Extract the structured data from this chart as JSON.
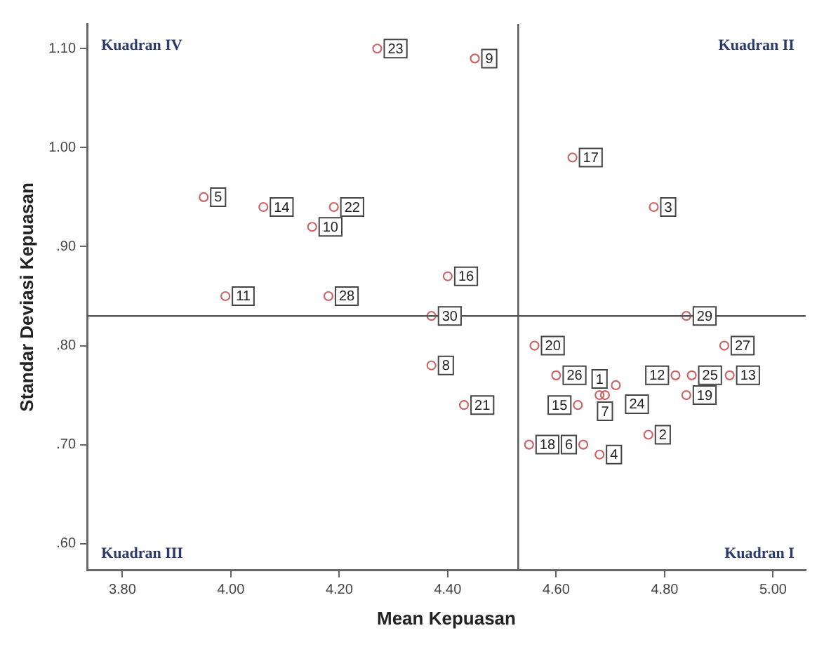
{
  "chart_data": {
    "type": "scatter",
    "xlabel": "Mean Kepuasan",
    "ylabel": "Standar Deviasi Kepuasan",
    "x": [
      4.68,
      4.77,
      4.78,
      4.68,
      3.95,
      4.65,
      4.69,
      4.37,
      4.45,
      4.15,
      3.99,
      4.82,
      4.92,
      4.06,
      4.64,
      4.4,
      4.63,
      4.55,
      4.84,
      4.56,
      4.43,
      4.19,
      4.27,
      4.71,
      4.85,
      4.6,
      4.91,
      4.18,
      4.84,
      4.37
    ],
    "series": [
      {
        "color": "#cc6666",
        "values": [
          0.75,
          0.71,
          0.94,
          0.69,
          0.95,
          0.7,
          0.75,
          0.78,
          1.09,
          0.92,
          0.85,
          0.77,
          0.77,
          0.94,
          0.74,
          0.87,
          0.99,
          0.7,
          0.75,
          0.8,
          0.74,
          0.94,
          1.1,
          0.76,
          0.77,
          0.77,
          0.8,
          0.85,
          0.83,
          0.83
        ]
      }
    ],
    "xlim": [
      3.735,
      5.06
    ],
    "ylim": [
      0.573,
      1.125
    ],
    "xticks": [
      {
        "value": 3.8,
        "label": "3.80"
      },
      {
        "value": 4.0,
        "label": "4.00"
      },
      {
        "value": 4.2,
        "label": "4.20"
      },
      {
        "value": 4.4,
        "label": "4.40"
      },
      {
        "value": 4.6,
        "label": "4.60"
      },
      {
        "value": 4.8,
        "label": "4.80"
      },
      {
        "value": 5.0,
        "label": "5.00"
      }
    ],
    "yticks": [
      {
        "value": 0.6,
        "label": ".60"
      },
      {
        "value": 0.7,
        "label": ".70"
      },
      {
        "value": 0.8,
        "label": ".80"
      },
      {
        "value": 0.9,
        "label": ".90"
      },
      {
        "value": 1.0,
        "label": "1.00"
      },
      {
        "value": 1.1,
        "label": "1.10"
      }
    ],
    "ref_lines": [
      {
        "axis": "x",
        "value": 4.53,
        "color": "#555555"
      },
      {
        "axis": "y",
        "value": 0.83,
        "color": "#555555"
      }
    ],
    "annotations": [
      "Kuadran IV",
      "Kuadran II",
      "Kuadran III",
      "Kuadran I",
      {
        "text": "1",
        "x": 4.68,
        "y": 0.75
      },
      {
        "text": "2",
        "x": 4.77,
        "y": 0.71
      },
      {
        "text": "3",
        "x": 4.78,
        "y": 0.94
      },
      {
        "text": "4",
        "x": 4.68,
        "y": 0.69
      },
      {
        "text": "5",
        "x": 3.95,
        "y": 0.95
      },
      {
        "text": "6",
        "x": 4.65,
        "y": 0.7
      },
      {
        "text": "7",
        "x": 4.69,
        "y": 0.75
      },
      {
        "text": "8",
        "x": 4.37,
        "y": 0.78
      },
      {
        "text": "9",
        "x": 4.45,
        "y": 1.09
      },
      {
        "text": "10",
        "x": 4.15,
        "y": 0.92
      },
      {
        "text": "11",
        "x": 3.99,
        "y": 0.85
      },
      {
        "text": "12",
        "x": 4.82,
        "y": 0.77
      },
      {
        "text": "13",
        "x": 4.92,
        "y": 0.77
      },
      {
        "text": "14",
        "x": 4.06,
        "y": 0.94
      },
      {
        "text": "15",
        "x": 4.64,
        "y": 0.74
      },
      {
        "text": "16",
        "x": 4.4,
        "y": 0.87
      },
      {
        "text": "17",
        "x": 4.63,
        "y": 0.99
      },
      {
        "text": "18",
        "x": 4.55,
        "y": 0.7
      },
      {
        "text": "19",
        "x": 4.84,
        "y": 0.75
      },
      {
        "text": "20",
        "x": 4.56,
        "y": 0.8
      },
      {
        "text": "21",
        "x": 4.43,
        "y": 0.74
      },
      {
        "text": "22",
        "x": 4.19,
        "y": 0.94
      },
      {
        "text": "23",
        "x": 4.27,
        "y": 1.1
      },
      {
        "text": "24",
        "x": 4.71,
        "y": 0.76
      },
      {
        "text": "25",
        "x": 4.85,
        "y": 0.77
      },
      {
        "text": "26",
        "x": 4.6,
        "y": 0.77
      },
      {
        "text": "27",
        "x": 4.91,
        "y": 0.8
      },
      {
        "text": "28",
        "x": 4.18,
        "y": 0.85
      },
      {
        "text": "29",
        "x": 4.84,
        "y": 0.83
      },
      {
        "text": "30",
        "x": 4.37,
        "y": 0.83
      }
    ],
    "marker": "circle",
    "grid": false,
    "legend": false
  }
}
